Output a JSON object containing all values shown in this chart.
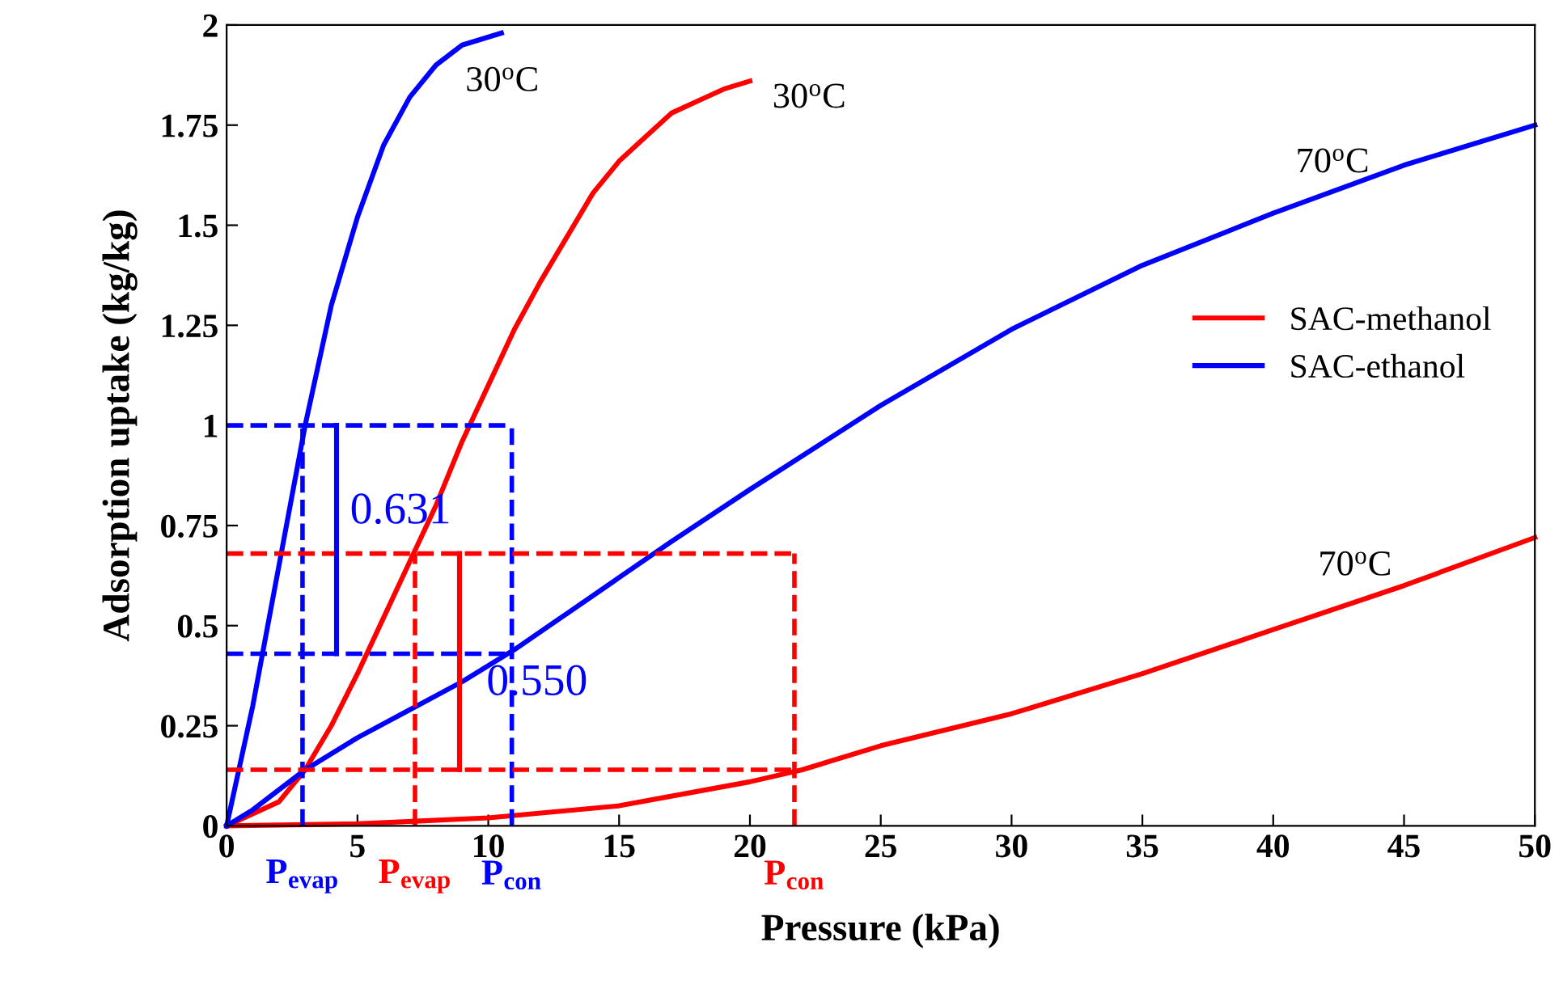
{
  "chart_data": {
    "type": "line",
    "xlabel": "Pressure (kPa)",
    "ylabel": "Adsorption uptake (kg/kg)",
    "xlim": [
      0,
      50
    ],
    "ylim": [
      0,
      2
    ],
    "xticks": [
      0,
      5,
      10,
      15,
      20,
      25,
      30,
      35,
      40,
      45,
      50
    ],
    "yticks": [
      0,
      0.25,
      0.5,
      0.75,
      1,
      1.25,
      1.5,
      1.75,
      2
    ],
    "grid": false,
    "legend": "right",
    "line_style": "solid",
    "marker": "none",
    "series": [
      {
        "color": "#ff0000",
        "x": [
          0,
          2,
          3,
          4,
          5,
          6,
          7,
          8,
          9,
          10,
          11,
          12,
          13,
          14,
          15,
          16,
          17,
          18,
          19,
          20
        ],
        "values": [
          0,
          0.06,
          0.14,
          0.25,
          0.38,
          0.52,
          0.66,
          0.8,
          0.96,
          1.1,
          1.24,
          1.36,
          1.47,
          1.58,
          1.66,
          1.72,
          1.78,
          1.81,
          1.84,
          1.86
        ]
      },
      {
        "name": "SAC-methanol",
        "color": "#ff0000",
        "x": [
          0,
          5,
          10,
          15,
          20,
          22,
          25,
          30,
          35,
          40,
          45,
          50
        ],
        "values": [
          0,
          0.005,
          0.02,
          0.05,
          0.11,
          0.14,
          0.2,
          0.28,
          0.38,
          0.49,
          0.6,
          0.72
        ]
      },
      {
        "color": "#0000ff",
        "x": [
          0,
          1,
          2,
          3,
          4,
          5,
          6,
          7,
          8,
          9,
          10.5
        ],
        "values": [
          0,
          0.3,
          0.65,
          1.0,
          1.3,
          1.52,
          1.7,
          1.82,
          1.9,
          1.95,
          1.98
        ]
      },
      {
        "name": "SAC-ethanol",
        "color": "#0000ff",
        "x": [
          0,
          1,
          2,
          3,
          5,
          7,
          9,
          11,
          13,
          15,
          17,
          20,
          25,
          30,
          35,
          40,
          45,
          50
        ],
        "values": [
          0,
          0.04,
          0.09,
          0.14,
          0.22,
          0.29,
          0.36,
          0.44,
          0.53,
          0.62,
          0.71,
          0.84,
          1.05,
          1.24,
          1.4,
          1.53,
          1.65,
          1.75
        ]
      },
      {
        "color": "#0000ff",
        "line_style": "dashed",
        "x": [
          0,
          10.9
        ],
        "values": [
          1,
          1
        ]
      },
      {
        "color": "#0000ff",
        "line_style": "dashed",
        "x": [
          0,
          10.9
        ],
        "values": [
          0.43,
          0.43
        ]
      },
      {
        "color": "#0000ff",
        "line_style": "dashed",
        "x": [
          2.9,
          2.9
        ],
        "values": [
          0,
          1
        ]
      },
      {
        "color": "#0000ff",
        "line_style": "dashed",
        "x": [
          10.9,
          10.9
        ],
        "values": [
          0,
          1
        ]
      },
      {
        "color": "#ff0000",
        "line_style": "dashed",
        "x": [
          0,
          21.7
        ],
        "values": [
          0.68,
          0.68
        ]
      },
      {
        "color": "#ff0000",
        "line_style": "dashed",
        "x": [
          0,
          21.7
        ],
        "values": [
          0.14,
          0.14
        ]
      },
      {
        "color": "#ff0000",
        "line_style": "dashed",
        "x": [
          7.2,
          7.2
        ],
        "values": [
          0,
          0.68
        ]
      },
      {
        "color": "#ff0000",
        "line_style": "dashed",
        "x": [
          21.7,
          21.7
        ],
        "values": [
          0,
          0.68
        ]
      },
      {
        "color": "#0000ff",
        "x": [
          4.2,
          4.2
        ],
        "values": [
          0.43,
          1
        ]
      },
      {
        "color": "#ff0000",
        "x": [
          8.9,
          8.9
        ],
        "values": [
          0.14,
          0.68
        ]
      }
    ],
    "annotations": [
      {
        "text": "30$^{o}$C",
        "x": 10.5,
        "y": 1.98
      },
      {
        "text": "30$^{o}$C",
        "x": 20,
        "y": 1.86
      },
      {
        "text": "70$^{o}$C",
        "x": 40,
        "y": 1.53
      },
      {
        "text": "70$^{o}$C",
        "x": 40,
        "y": 0.49
      },
      {
        "text": "0.631",
        "x": 4.2,
        "y": 0.715
      },
      {
        "text": "0.550",
        "x": 8.9,
        "y": 0.41
      },
      {
        "text": "P$_{evap}$",
        "x": 2.9,
        "y": 0
      },
      {
        "text": "P$_{evap}$",
        "x": 7.2,
        "y": 0
      },
      {
        "text": "P$_{con}$",
        "x": 10.9,
        "y": 0
      },
      {
        "text": "P$_{con}$",
        "x": 21.7,
        "y": 0
      }
    ]
  }
}
